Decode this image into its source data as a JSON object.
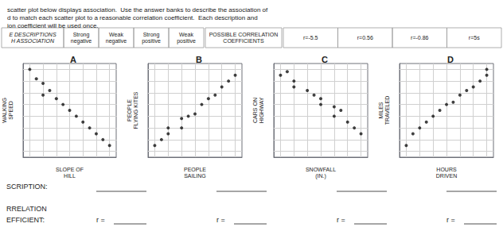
{
  "title": "scatter plot below displays association.  Use the answer banks to describe the association of\nd to match each scatter plot to a reasonable correlation coefficient.  Each description and\nion coefficient will be used once.",
  "annotations": [
    "E DESCRIPTIONS\nH ASSOCIATION",
    "Strong\nnegative",
    "Weak\nnegative",
    "Strong\npositive",
    "Weak\npositive",
    "POSSIBLE CORRELATION\nCOEFFICIENTS",
    "r=-5.5",
    "r=0.56",
    "r=-0.86",
    "r=5s",
    "SCRIPTION:",
    "RRELATION",
    "EFFICIENT:",
    "r =",
    "r =",
    "r =",
    "r ="
  ],
  "chart_data": [
    {
      "type": "scatter",
      "title": "A",
      "xlabel": "SLOPE OF\nHILL",
      "ylabel": "WALKING\nSPEED",
      "x": [
        1,
        1.5,
        2,
        2.5,
        2,
        3,
        3.5,
        4,
        4.5,
        5,
        5.5,
        6,
        6.5,
        7
      ],
      "values": [
        8,
        7.2,
        6.8,
        6.2,
        5.8,
        5.5,
        5.0,
        4.5,
        4.0,
        3.5,
        3.0,
        2.5,
        2.0,
        1.5
      ],
      "color": "#111111",
      "xlim": [
        0.5,
        7.5
      ],
      "ylim": [
        0.5,
        8.5
      ],
      "xticks": [
        1,
        2,
        3,
        4,
        5,
        6,
        7
      ],
      "yticks": [
        1,
        2,
        3,
        4,
        5,
        6,
        7,
        8
      ],
      "grid": true,
      "tick_labels": false
    },
    {
      "type": "scatter",
      "title": "B",
      "xlabel": "PEOPLE\nSAILING",
      "ylabel": "PEOPLE\nFLYING KITES",
      "x": [
        1,
        1.5,
        2,
        2,
        3,
        3,
        3.5,
        4,
        4.5,
        5,
        5.5,
        6,
        6.5,
        7
      ],
      "values": [
        1.5,
        2.0,
        2.5,
        3.0,
        3.0,
        3.8,
        4.0,
        4.2,
        5.0,
        5.5,
        5.8,
        6.5,
        7.0,
        7.5
      ],
      "color": "#111111",
      "xlim": [
        0.5,
        7.5
      ],
      "ylim": [
        0.5,
        8.5
      ],
      "xticks": [
        1,
        2,
        3,
        4,
        5,
        6,
        7
      ],
      "yticks": [
        1,
        2,
        3,
        4,
        5,
        6,
        7,
        8
      ],
      "grid": true,
      "tick_labels": false
    },
    {
      "type": "scatter",
      "title": "C",
      "xlabel": "SNOWFALL\n(IN.)",
      "ylabel": "CARS ON\nHIGHWAY",
      "x": [
        1,
        1.5,
        2,
        2,
        3,
        3.5,
        4,
        4,
        5,
        5,
        5.5,
        6,
        6.5,
        7
      ],
      "values": [
        7.5,
        7.8,
        7.0,
        6.5,
        6.2,
        5.8,
        5.5,
        5.0,
        4.8,
        4.0,
        4.5,
        3.5,
        3.0,
        2.5
      ],
      "color": "#111111",
      "xlim": [
        0.5,
        7.5
      ],
      "ylim": [
        0.5,
        8.5
      ],
      "xticks": [
        1,
        2,
        3,
        4,
        5,
        6,
        7
      ],
      "yticks": [
        1,
        2,
        3,
        4,
        5,
        6,
        7,
        8
      ],
      "grid": true,
      "tick_labels": false
    },
    {
      "type": "scatter",
      "title": "D",
      "xlabel": "HOURS\nDRIVEN",
      "ylabel": "MILES\nTRAVELED",
      "x": [
        1,
        1.5,
        2,
        2.5,
        3,
        3.5,
        4,
        4.5,
        5,
        5.5,
        6,
        6.5,
        7,
        7
      ],
      "values": [
        1.5,
        2.5,
        3.0,
        3.5,
        4.0,
        4.5,
        5.0,
        5.2,
        5.8,
        6.2,
        6.5,
        7.0,
        7.5,
        8.0
      ],
      "color": "#111111",
      "xlim": [
        0.5,
        7.5
      ],
      "ylim": [
        0.5,
        8.5
      ],
      "xticks": [
        1,
        2,
        3,
        4,
        5,
        6,
        7
      ],
      "yticks": [
        1,
        2,
        3,
        4,
        5,
        6,
        7,
        8
      ],
      "grid": true,
      "tick_labels": false
    }
  ]
}
